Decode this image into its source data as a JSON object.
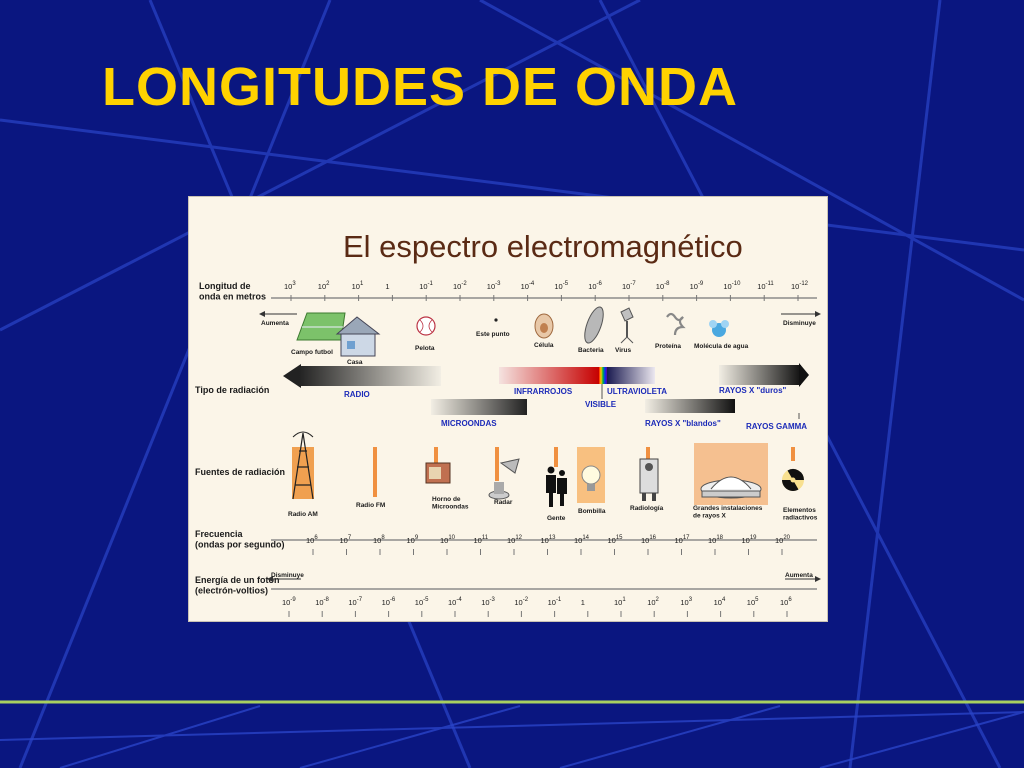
{
  "slide": {
    "title": "LONGITUDES DE ONDA"
  },
  "diagram": {
    "title": "El espectro electromagnético",
    "rows": {
      "wavelength": "Longitud de\nonda en metros",
      "radiation_type": "Tipo de radiación",
      "sources": "Fuentes de radiación",
      "frequency": "Frecuencia\n(ondas por segundo)",
      "energy": "Energía de un fotón\n(electrón-voltios)"
    },
    "wavelength_ticks": [
      "10^3",
      "10^2",
      "10^1",
      "1",
      "10^-1",
      "10^-2",
      "10^-3",
      "10^-4",
      "10^-5",
      "10^-6",
      "10^-7",
      "10^-8",
      "10^-9",
      "10^-10",
      "10^-11",
      "10^-12"
    ],
    "size_direction": {
      "left": "Aumenta",
      "right": "Disminuye"
    },
    "size_examples": [
      "Campo futbol",
      "Casa",
      "Pelota",
      "Este punto",
      "Célula",
      "Bacteria",
      "Virus",
      "Proteína",
      "Molécula de agua"
    ],
    "radiation_bands": [
      "RADIO",
      "MICROONDAS",
      "INFRARROJOS",
      "VISIBLE",
      "ULTRAVIOLETA",
      "RAYOS X \"blandos\"",
      "RAYOS X \"duros\"",
      "RAYOS GAMMA"
    ],
    "sources": [
      "Radio AM",
      "Radio FM",
      "Horno de\nMicroondas",
      "Radar",
      "Gente",
      "Bombilla",
      "Radiología",
      "Grandes instalaciones\nde rayos X",
      "Elementos\nradiactivos"
    ],
    "frequency_ticks": [
      "10^6",
      "10^7",
      "10^8",
      "10^9",
      "10^10",
      "10^11",
      "10^12",
      "10^13",
      "10^14",
      "10^15",
      "10^16",
      "10^17",
      "10^18",
      "10^19",
      "10^20"
    ],
    "energy_direction": {
      "left": "Disminuye",
      "right": "Aumenta"
    },
    "energy_ticks": [
      "10^-9",
      "10^-8",
      "10^-7",
      "10^-6",
      "10^-5",
      "10^-4",
      "10^-3",
      "10^-2",
      "10^-1",
      "1",
      "10^1",
      "10^2",
      "10^3",
      "10^4",
      "10^5",
      "10^6"
    ]
  }
}
